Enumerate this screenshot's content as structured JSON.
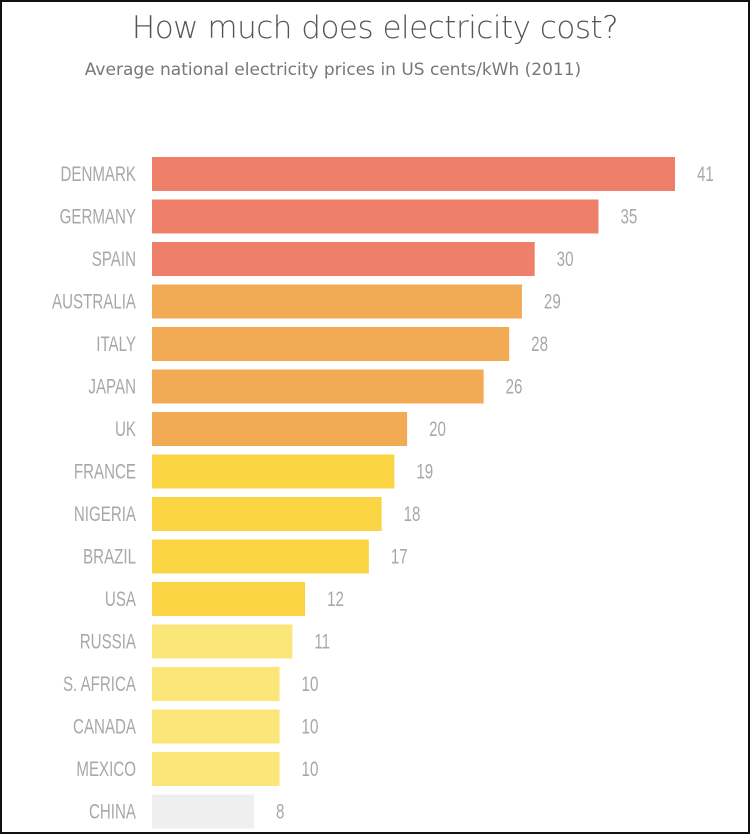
{
  "chart_data": {
    "type": "bar",
    "orientation": "horizontal",
    "title": "How much does electricity cost?",
    "subtitle": "Average national electricity prices in US cents/kWh (2011)",
    "categories": [
      "DENMARK",
      "GERMANY",
      "SPAIN",
      "AUSTRALIA",
      "ITALY",
      "JAPAN",
      "UK",
      "FRANCE",
      "NIGERIA",
      "BRAZIL",
      "USA",
      "RUSSIA",
      "S. AFRICA",
      "CANADA",
      "MEXICO",
      "CHINA"
    ],
    "values": [
      41,
      35,
      30,
      29,
      28,
      26,
      20,
      19,
      18,
      17,
      12,
      11,
      10,
      10,
      10,
      8
    ],
    "colors": [
      "#ee8069",
      "#ee8069",
      "#ee8069",
      "#f3aa55",
      "#f3aa55",
      "#f3aa55",
      "#f3aa55",
      "#fbd444",
      "#fbd444",
      "#fbd444",
      "#fbd444",
      "#fbe679",
      "#fbe679",
      "#fbe679",
      "#fbe679",
      "#efefef"
    ],
    "xlim": [
      0,
      41
    ],
    "grid": false,
    "legend": "none"
  }
}
